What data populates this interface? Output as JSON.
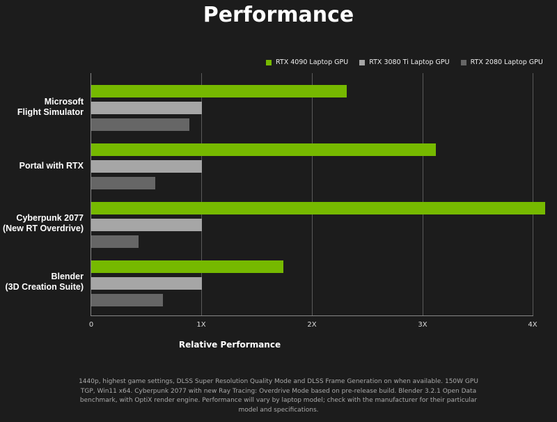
{
  "title": "Performance",
  "legend": [
    {
      "label": "RTX 4090 Laptop GPU",
      "color": "#76b900"
    },
    {
      "label": "RTX 3080 Ti Laptop GPU",
      "color": "#a6a6a6"
    },
    {
      "label": "RTX 2080 Laptop GPU",
      "color": "#666666"
    }
  ],
  "categories": [
    {
      "line1": "Microsoft",
      "line2": "Flight Simulator"
    },
    {
      "line1": "Portal with RTX",
      "line2": ""
    },
    {
      "line1": "Cyberpunk 2077",
      "line2": "(New RT Overdrive)"
    },
    {
      "line1": "Blender",
      "line2": "(3D Creation Suite)"
    }
  ],
  "ticks": [
    "0",
    "1X",
    "2X",
    "3X",
    "4X"
  ],
  "xlabel": "Relative Performance",
  "footnote": "1440p, highest game settings, DLSS Super Resolution Quality Mode and DLSS Frame Generation on when available. 150W GPU TGP, Win11 x64. Cyberpunk 2077 with new Ray Tracing: Overdrive Mode based on pre-release build. Blender 3.2.1 Open Data benchmark, with OptiX render engine. Performance will vary by laptop model; check with the manufacturer for their particular model and specifications.",
  "chart_data": {
    "type": "bar",
    "orientation": "horizontal",
    "title": "Performance",
    "xlabel": "Relative Performance",
    "ylabel": "",
    "categories": [
      "Microsoft Flight Simulator",
      "Portal with RTX",
      "Cyberpunk 2077 (New RT Overdrive)",
      "Blender (3D Creation Suite)"
    ],
    "series": [
      {
        "name": "RTX 4090 Laptop GPU",
        "color": "#76b900",
        "values": [
          2.31,
          3.12,
          4.11,
          1.74
        ]
      },
      {
        "name": "RTX 3080 Ti Laptop GPU",
        "color": "#a6a6a6",
        "values": [
          1.0,
          1.0,
          1.0,
          1.0
        ]
      },
      {
        "name": "RTX 2080 Laptop GPU",
        "color": "#666666",
        "values": [
          0.89,
          0.58,
          0.43,
          0.65
        ]
      }
    ],
    "xlim": [
      0,
      4
    ],
    "xticks": [
      "0",
      "1X",
      "2X",
      "3X",
      "4X"
    ],
    "grid": true,
    "legend_position": "top-right"
  }
}
